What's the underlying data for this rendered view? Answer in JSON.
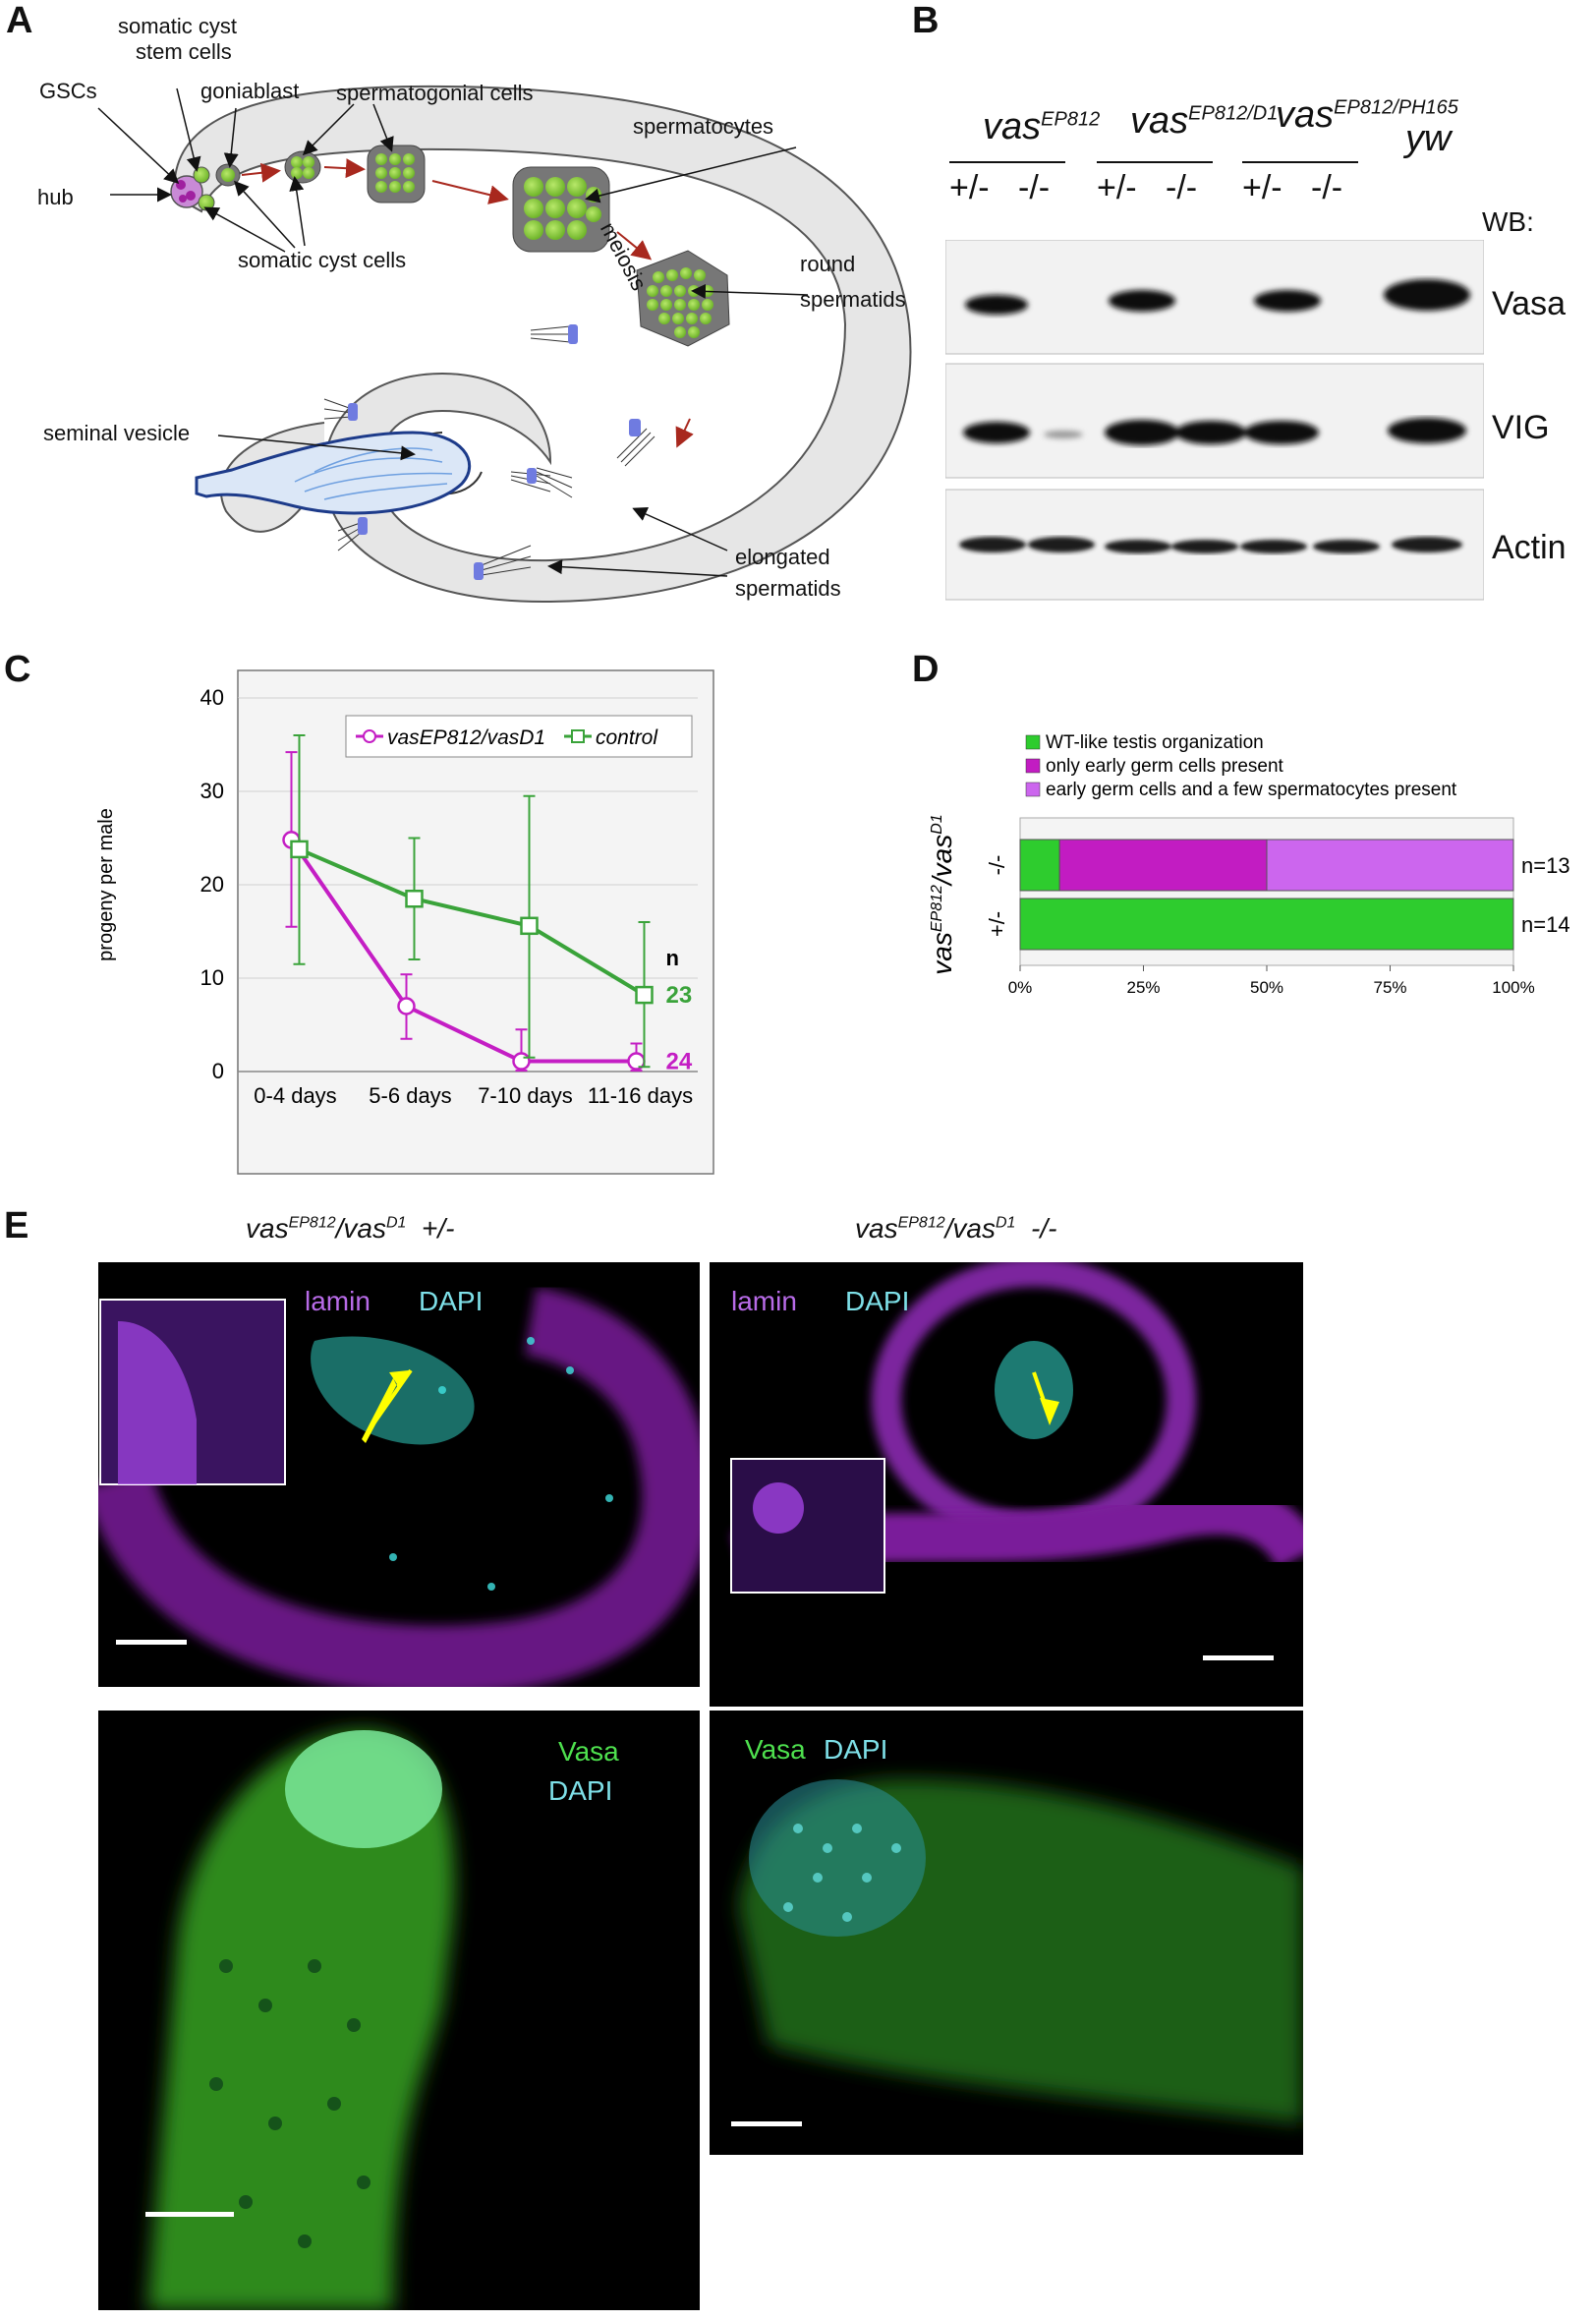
{
  "panels": {
    "a": "A",
    "b": "B",
    "c": "C",
    "d": "D",
    "e": "E"
  },
  "panelA": {
    "gscs": "GSCs",
    "hub": "hub",
    "somatic_cyst_stem_1": "somatic cyst",
    "somatic_cyst_stem_2": "stem cells",
    "goniablast": "goniablast",
    "spermatogonial": "spermatogonial cells",
    "spermatocytes": "spermatocytes",
    "meiosis": "meiosis",
    "round_1": "round",
    "round_2": "spermatids",
    "somatic_cyst": "somatic cyst cells",
    "seminal": "seminal vesicle",
    "elongated_1": "elongated",
    "elongated_2": "spermatids"
  },
  "panelB": {
    "groups": [
      {
        "base": "vas",
        "sup": "EP812"
      },
      {
        "base": "vas",
        "sup": "EP812/D1"
      },
      {
        "base": "vas",
        "sup": "EP812/PH165"
      }
    ],
    "yw": "yw",
    "lanes": [
      "+/-",
      "-/-",
      "+/-",
      "-/-",
      "+/-",
      "-/-"
    ],
    "wb": "WB:",
    "blots": [
      "Vasa",
      "VIG",
      "Actin"
    ]
  },
  "chart_data": [
    {
      "type": "line",
      "ylabel": "progeny per male",
      "xlabel": "",
      "categories": [
        "0-4 days",
        "5-6 days",
        "7-10 days",
        "11-16 days"
      ],
      "ylim": [
        0,
        40
      ],
      "yticks": [
        "0",
        "10",
        "20",
        "30",
        "40"
      ],
      "legend_placement": "top-right",
      "grid": true,
      "series": [
        {
          "name": "vasEP812/vasD1",
          "color": "#c41ec4",
          "values": [
            24.8,
            7.0,
            1.1,
            1.1
          ],
          "err_low": [
            15.5,
            3.5,
            0.1,
            0.1
          ],
          "err_high": [
            34.2,
            10.4,
            4.5,
            3.0
          ],
          "n": "24"
        },
        {
          "name": "control",
          "color": "#3aa33a",
          "values": [
            23.8,
            18.5,
            15.6,
            8.2
          ],
          "err_low": [
            11.5,
            12.0,
            1.5,
            0.5
          ],
          "err_high": [
            36.0,
            25.0,
            29.5,
            16.0
          ],
          "n": "23"
        }
      ],
      "n_label": "n"
    },
    {
      "type": "bar",
      "orientation": "horizontal-stacked",
      "xticks": [
        "0%",
        "25%",
        "50%",
        "75%",
        "100%"
      ],
      "categories": [
        "-/-",
        "+/-"
      ],
      "ylabel_base": "vas",
      "ylabel_sup1": "EP812",
      "ylabel_mid": "/vas",
      "ylabel_sup2": "D1",
      "series": [
        {
          "name": "WT-like testis organization",
          "color": "#2ecc2e",
          "values": [
            8,
            100
          ]
        },
        {
          "name": "only early germ cells present",
          "color": "#c21cc2",
          "values": [
            42,
            0
          ]
        },
        {
          "name": "early germ cells and a few  spermatocytes present",
          "color": "#cc66ee",
          "values": [
            50,
            0
          ]
        }
      ],
      "n_labels": [
        "n=13",
        "n=14"
      ]
    }
  ],
  "panelE": {
    "left_title": {
      "base": "vas",
      "sup1": "EP812",
      "mid": "/vas",
      "sup2": "D1",
      "geno": "+/-"
    },
    "right_title": {
      "base": "vas",
      "sup1": "EP812",
      "mid": "/vas",
      "sup2": "D1",
      "geno": "-/-"
    },
    "lamin": "lamin",
    "dapi": "DAPI",
    "vasa": "Vasa"
  }
}
